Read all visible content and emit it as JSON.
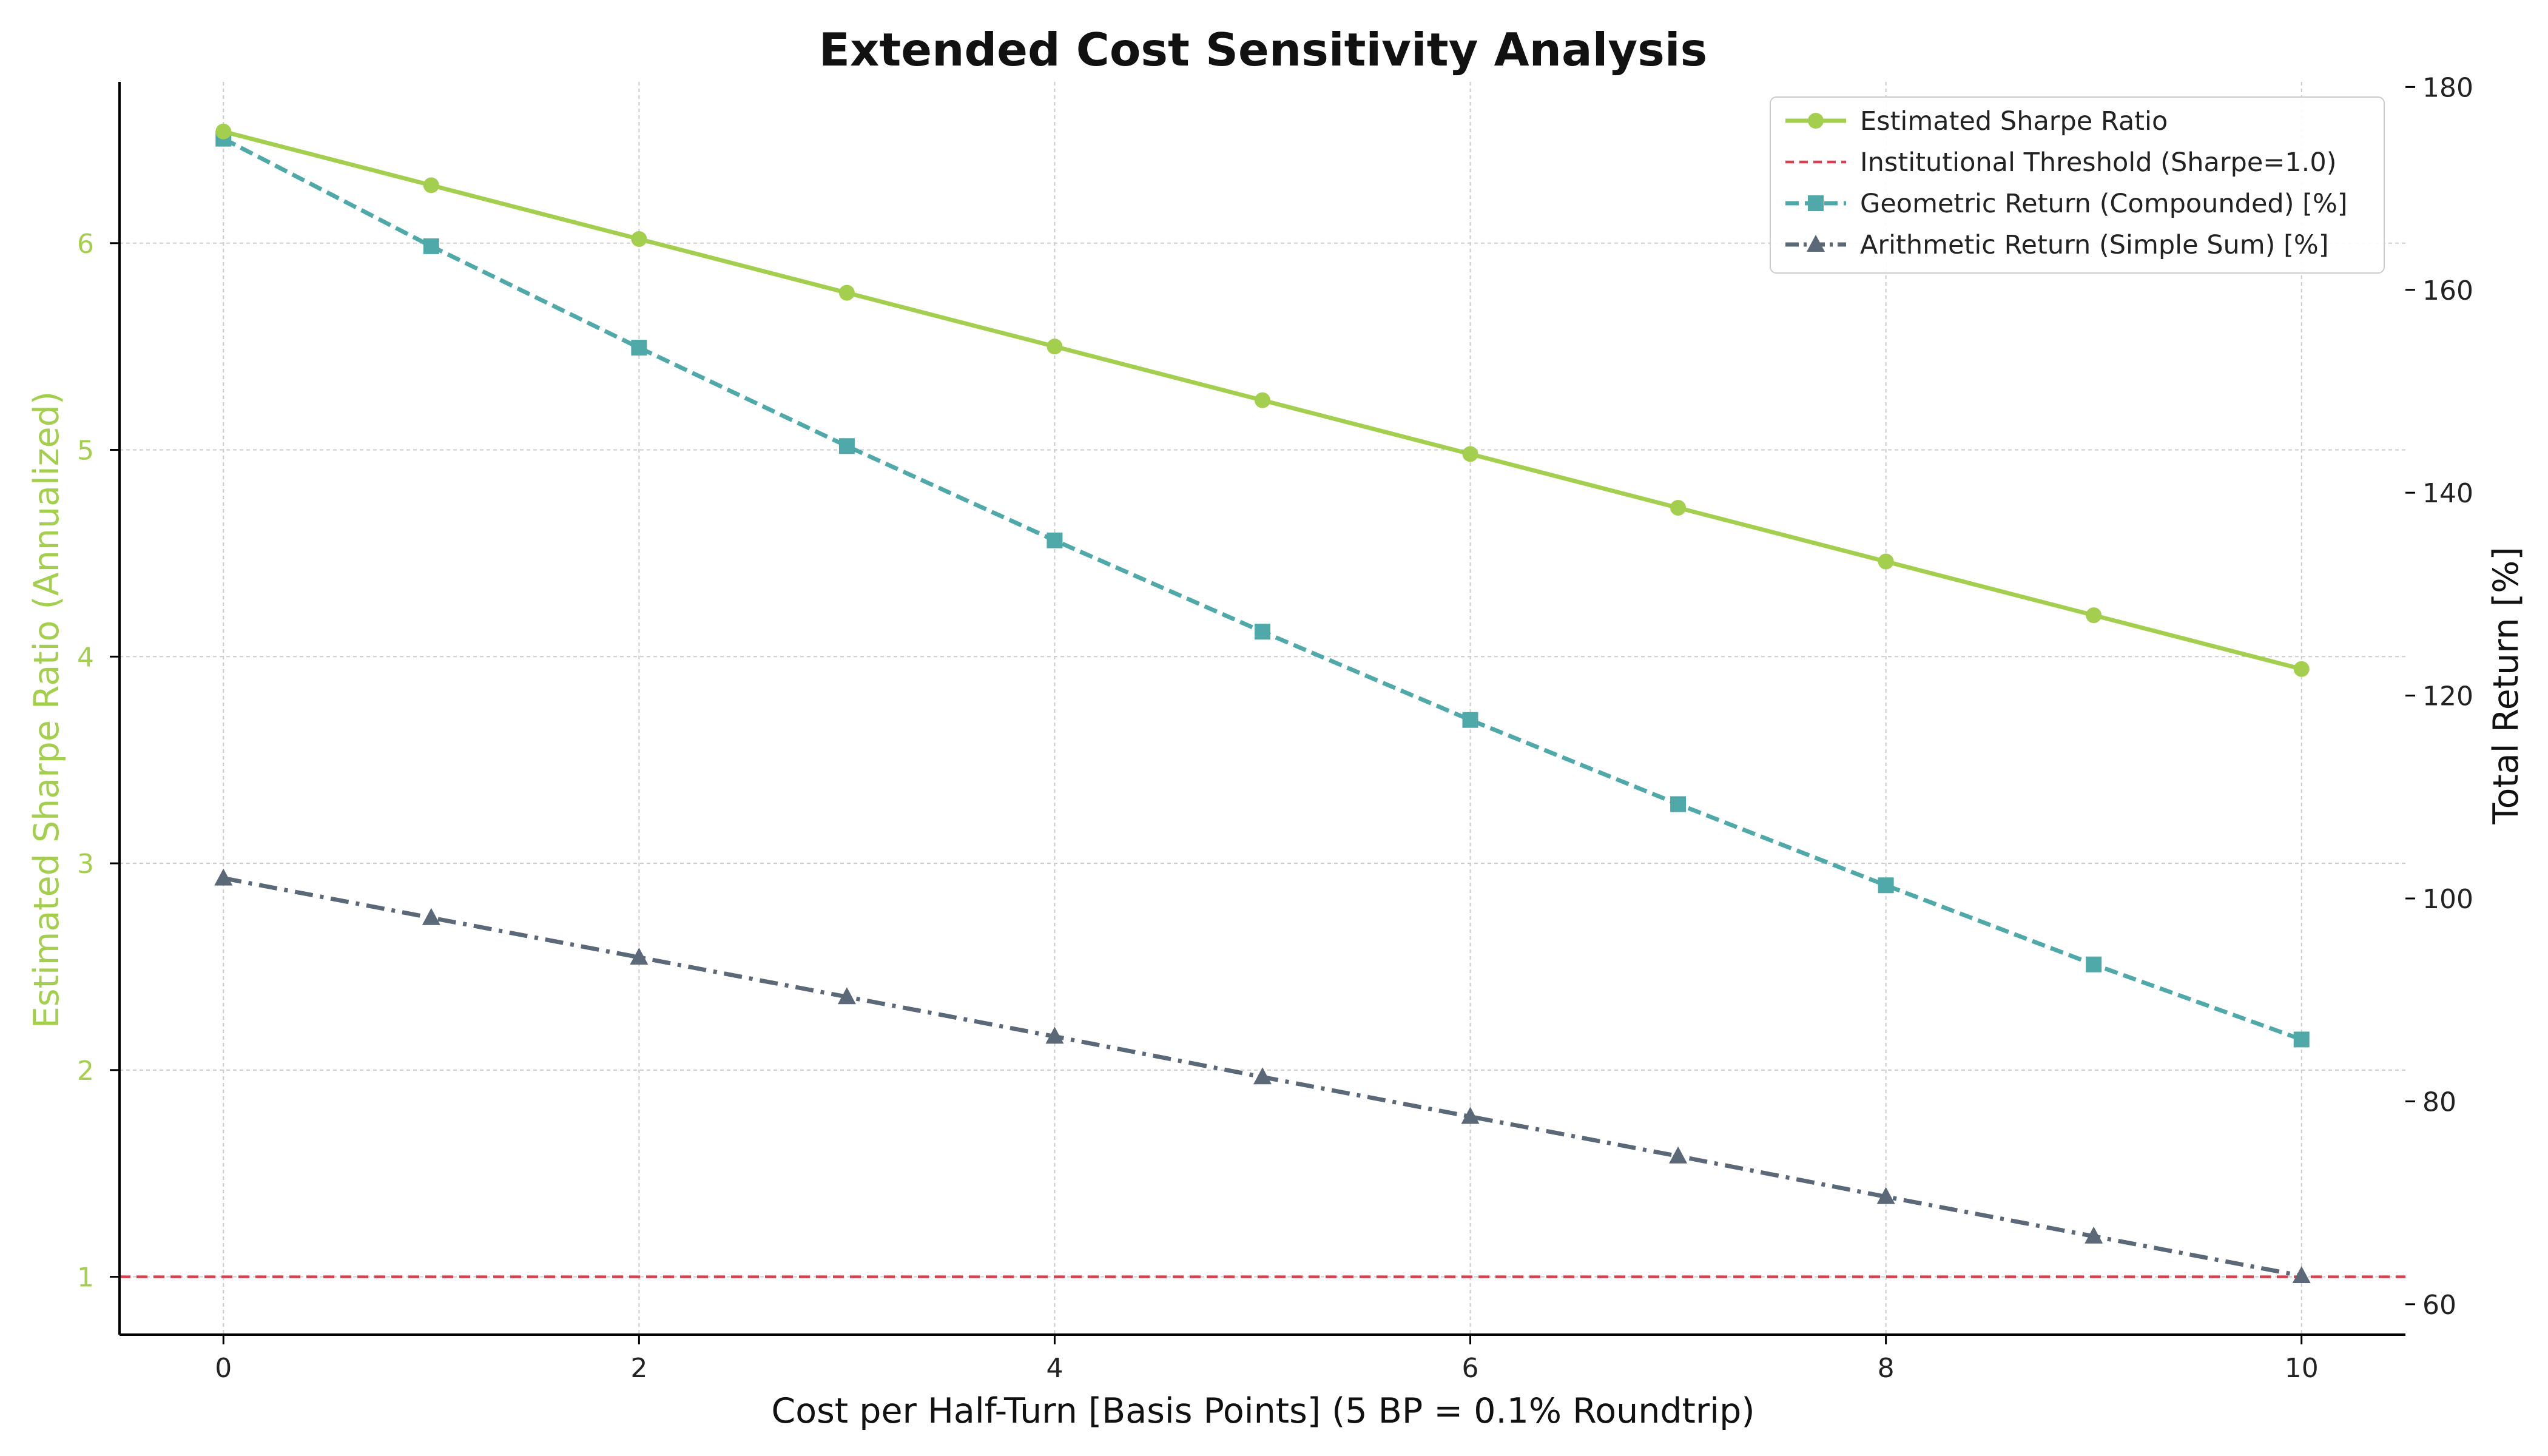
{
  "chart_data": {
    "type": "line",
    "title": "Extended Cost Sensitivity Analysis",
    "xlabel": "Cost per Half-Turn [Basis Points] (5 BP = 0.1% Roundtrip)",
    "ylabel_left": "Estimated Sharpe Ratio (Annualized)",
    "ylabel_right": "Total Return [%]",
    "x": [
      0,
      1,
      2,
      3,
      4,
      5,
      6,
      7,
      8,
      9,
      10
    ],
    "xlim": [
      -0.5,
      10.5
    ],
    "ylim_left": [
      0.72,
      6.78
    ],
    "ylim_right": [
      57,
      180.5
    ],
    "xticks": [
      0,
      2,
      4,
      6,
      8,
      10
    ],
    "yticks_left": [
      1,
      2,
      3,
      4,
      5,
      6
    ],
    "yticks_right": [
      60,
      80,
      100,
      120,
      140,
      160,
      180
    ],
    "grid": true,
    "legend_position": "top-right",
    "series": [
      {
        "name": "Estimated Sharpe Ratio",
        "axis": "left",
        "color": "#a4cf4e",
        "line_style": "solid",
        "marker": "circle",
        "values": [
          6.54,
          6.28,
          6.02,
          5.76,
          5.5,
          5.24,
          4.98,
          4.72,
          4.46,
          4.2,
          3.94
        ]
      },
      {
        "name": "Institutional Threshold (Sharpe=1.0)",
        "axis": "left",
        "color": "#d9404f",
        "line_style": "dashed",
        "marker": "none",
        "constant": 1.0
      },
      {
        "name": "Geometric Return (Compounded) [%]",
        "axis": "right",
        "color": "#4fa9a9",
        "line_style": "dashed",
        "marker": "square",
        "values": [
          174.9,
          164.3,
          154.3,
          144.6,
          135.3,
          126.3,
          117.6,
          109.3,
          101.3,
          93.5,
          86.1
        ]
      },
      {
        "name": "Arithmetic Return (Simple Sum) [%]",
        "axis": "right",
        "color": "#5a6878",
        "line_style": "dashdot",
        "marker": "triangle",
        "values": [
          102.0,
          98.1,
          94.2,
          90.3,
          86.4,
          82.4,
          78.5,
          74.6,
          70.6,
          66.7,
          62.8
        ]
      }
    ]
  }
}
